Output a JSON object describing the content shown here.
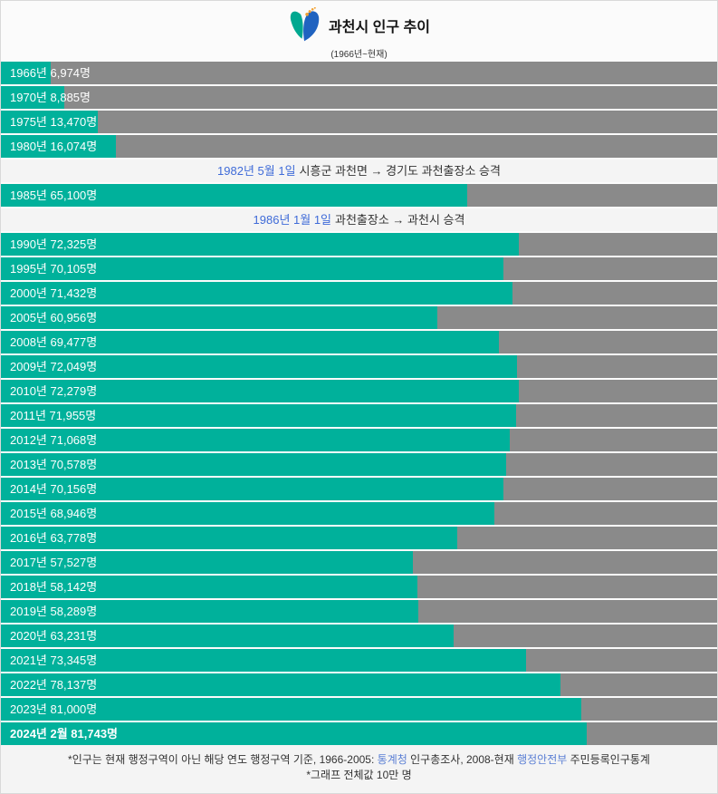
{
  "header": {
    "title": "과천시 인구 추이",
    "subtitle": "(1966년~현재)",
    "logo_icon": "gwacheon-butterfly-logo"
  },
  "colors": {
    "bar_fill": "#00b19b",
    "bar_track": "#8a8a8a",
    "page_bg": "#fbfbfb",
    "note_row_bg": "#f4f4f4",
    "note_date_blue": "#3f6bd8",
    "footer_link_blue": "#5b7fd4",
    "bar_label_text": "#ffffff",
    "logo_teal": "#00a890",
    "logo_blue": "#2063c0",
    "logo_orange": "#f2a133"
  },
  "chart_data": {
    "type": "bar",
    "orientation": "horizontal",
    "title": "과천시 인구 추이",
    "subtitle": "(1966년~현재)",
    "unit": "명",
    "max_value": 100000,
    "max_value_note": "그래프 전체값 10만 명",
    "rows": [
      {
        "kind": "bar",
        "year": "1966",
        "label": "1966년 6,974명",
        "value": 6974,
        "bold": false
      },
      {
        "kind": "bar",
        "year": "1970",
        "label": "1970년 8,885명",
        "value": 8885,
        "bold": false
      },
      {
        "kind": "bar",
        "year": "1975",
        "label": "1975년 13,470명",
        "value": 13470,
        "bold": false
      },
      {
        "kind": "bar",
        "year": "1980",
        "label": "1980년 16,074명",
        "value": 16074,
        "bold": false
      },
      {
        "kind": "note",
        "date": "1982년 5월 1일",
        "text": "시흥군 과천면 → 경기도 과천출장소 승격"
      },
      {
        "kind": "bar",
        "year": "1985",
        "label": "1985년 65,100명",
        "value": 65100,
        "bold": false
      },
      {
        "kind": "note",
        "date": "1986년 1월 1일",
        "text": "과천출장소 → 과천시 승격"
      },
      {
        "kind": "bar",
        "year": "1990",
        "label": "1990년 72,325명",
        "value": 72325,
        "bold": false
      },
      {
        "kind": "bar",
        "year": "1995",
        "label": "1995년 70,105명",
        "value": 70105,
        "bold": false
      },
      {
        "kind": "bar",
        "year": "2000",
        "label": "2000년 71,432명",
        "value": 71432,
        "bold": false
      },
      {
        "kind": "bar",
        "year": "2005",
        "label": "2005년 60,956명",
        "value": 60956,
        "bold": false
      },
      {
        "kind": "bar",
        "year": "2008",
        "label": "2008년 69,477명",
        "value": 69477,
        "bold": false
      },
      {
        "kind": "bar",
        "year": "2009",
        "label": "2009년 72,049명",
        "value": 72049,
        "bold": false
      },
      {
        "kind": "bar",
        "year": "2010",
        "label": "2010년 72,279명",
        "value": 72279,
        "bold": false
      },
      {
        "kind": "bar",
        "year": "2011",
        "label": "2011년 71,955명",
        "value": 71955,
        "bold": false
      },
      {
        "kind": "bar",
        "year": "2012",
        "label": "2012년 71,068명",
        "value": 71068,
        "bold": false
      },
      {
        "kind": "bar",
        "year": "2013",
        "label": "2013년 70,578명",
        "value": 70578,
        "bold": false
      },
      {
        "kind": "bar",
        "year": "2014",
        "label": "2014년 70,156명",
        "value": 70156,
        "bold": false
      },
      {
        "kind": "bar",
        "year": "2015",
        "label": "2015년 68,946명",
        "value": 68946,
        "bold": false
      },
      {
        "kind": "bar",
        "year": "2016",
        "label": "2016년 63,778명",
        "value": 63778,
        "bold": false
      },
      {
        "kind": "bar",
        "year": "2017",
        "label": "2017년 57,527명",
        "value": 57527,
        "bold": false
      },
      {
        "kind": "bar",
        "year": "2018",
        "label": "2018년 58,142명",
        "value": 58142,
        "bold": false
      },
      {
        "kind": "bar",
        "year": "2019",
        "label": "2019년 58,289명",
        "value": 58289,
        "bold": false
      },
      {
        "kind": "bar",
        "year": "2020",
        "label": "2020년 63,231명",
        "value": 63231,
        "bold": false
      },
      {
        "kind": "bar",
        "year": "2021",
        "label": "2021년 73,345명",
        "value": 73345,
        "bold": false
      },
      {
        "kind": "bar",
        "year": "2022",
        "label": "2022년 78,137명",
        "value": 78137,
        "bold": false
      },
      {
        "kind": "bar",
        "year": "2023",
        "label": "2023년 81,000명",
        "value": 81000,
        "bold": false
      },
      {
        "kind": "bar",
        "year": "2024",
        "label": "2024년 2월 81,743명",
        "value": 81743,
        "bold": true
      }
    ]
  },
  "footer": {
    "line1_pre": "*인구는 현재 행정구역이 아닌 해당 연도 행정구역 기준, 1966-2005: ",
    "link1": "통계청",
    "line1_mid": " 인구총조사, 2008-현재 ",
    "link2": "행정안전부",
    "line1_post": " 주민등록인구통계",
    "line2": "*그래프 전체값 10만 명"
  }
}
